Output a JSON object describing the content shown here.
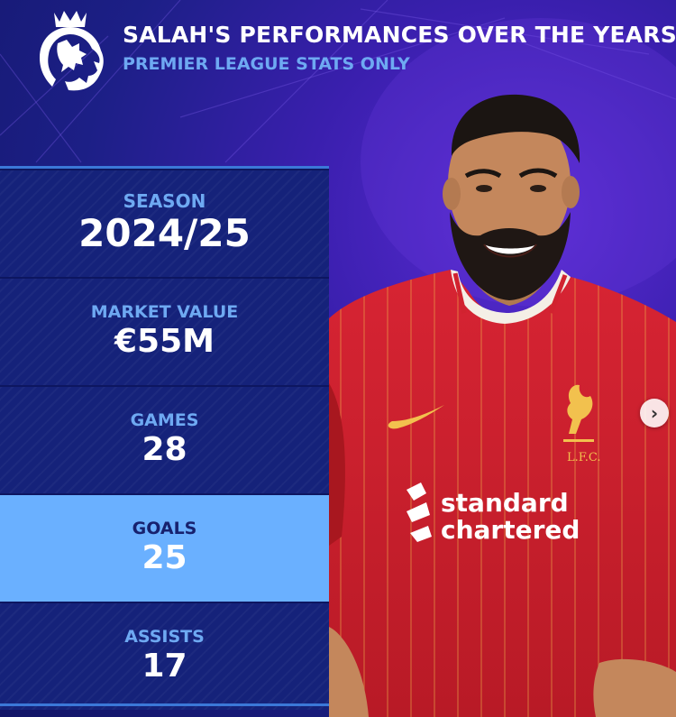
{
  "header": {
    "title": "SALAH'S PERFORMANCES OVER THE YEARS",
    "subtitle": "PREMIER LEAGUE STATS ONLY",
    "logo_icon": "premier-league-lion-icon"
  },
  "stats": [
    {
      "label": "SEASON",
      "value": "2024/25"
    },
    {
      "label": "MARKET VALUE",
      "value": "€55M"
    },
    {
      "label": "GAMES",
      "value": "28"
    },
    {
      "label": "GOALS",
      "value": "25"
    },
    {
      "label": "ASSISTS",
      "value": "17"
    }
  ],
  "photo": {
    "sponsor_line1": "standard",
    "sponsor_line2": "chartered",
    "crest_text": "L.F.C."
  },
  "controls": {
    "next_icon": "chevron-right-icon",
    "next_glyph": "›"
  },
  "colors": {
    "background": "#1c1f86",
    "panel": "#15227a",
    "highlight": "#6ab0ff",
    "accent_text": "#6ea9f2",
    "shirt_red": "#d21f2c"
  }
}
